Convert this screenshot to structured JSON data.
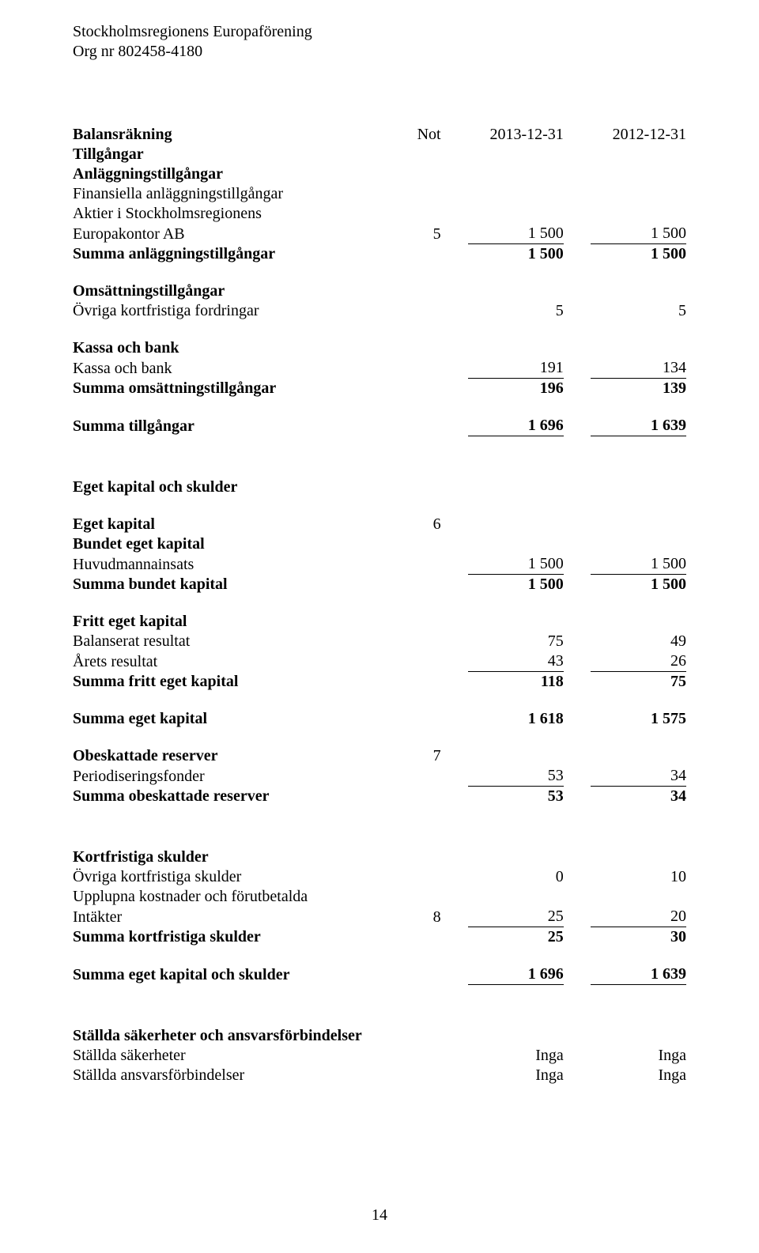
{
  "header": {
    "org_name": "Stockholmsregionens Europaförening",
    "org_nr_label": "Org nr 802458-4180"
  },
  "title": "Balansräkning",
  "col_headers": {
    "not": "Not",
    "y1": "2013-12-31",
    "y2": "2012-12-31"
  },
  "rows": [
    {
      "label": "Tillgångar",
      "style": "b"
    },
    {
      "label": "Anläggningstillgångar",
      "style": "b"
    },
    {
      "label": "Finansiella anläggningstillgångar"
    },
    {
      "label": "Aktier i Stockholmsregionens"
    },
    {
      "label": "Europakontor AB",
      "not": "5",
      "y1": "1 500",
      "y2": "1 500",
      "underline": true
    },
    {
      "label": "Summa anläggningstillgångar",
      "style": "b",
      "y1": "1 500",
      "y2": "1 500",
      "styleVals": "b"
    },
    {
      "spacer": 22
    },
    {
      "label": "Omsättningstillgångar",
      "style": "b"
    },
    {
      "label": "Övriga kortfristiga fordringar",
      "y1": "5",
      "y2": "5"
    },
    {
      "spacer": 22
    },
    {
      "label": "Kassa och bank",
      "style": "b"
    },
    {
      "label": "Kassa och bank",
      "y1": "191",
      "y2": "134",
      "underline": true
    },
    {
      "label": "Summa omsättningstillgångar",
      "style": "b",
      "y1": "196",
      "y2": "139",
      "styleVals": "b"
    },
    {
      "spacer": 22
    },
    {
      "label": "Summa tillgångar",
      "style": "b",
      "y1": "1 696",
      "y2": "1 639",
      "underline": true,
      "styleVals": "b"
    },
    {
      "spacer": 52
    },
    {
      "label": "Eget kapital och skulder",
      "style": "b"
    },
    {
      "spacer": 22
    },
    {
      "label": "Eget kapital",
      "style": "b",
      "not": "6"
    },
    {
      "label": "Bundet eget kapital",
      "style": "b"
    },
    {
      "label": "Huvudmannainsats",
      "y1": "1 500",
      "y2": "1 500",
      "underline": true
    },
    {
      "label": "Summa bundet kapital",
      "style": "b",
      "y1": "1 500",
      "y2": "1 500",
      "styleVals": "b"
    },
    {
      "spacer": 22
    },
    {
      "label": "Fritt eget kapital",
      "style": "b"
    },
    {
      "label": "Balanserat resultat",
      "y1": "75",
      "y2": "49"
    },
    {
      "label": "Årets resultat",
      "y1": "43",
      "y2": "26",
      "underline": true
    },
    {
      "label": "Summa fritt eget kapital",
      "style": "b",
      "y1": "118",
      "y2": "75",
      "styleVals": "b"
    },
    {
      "spacer": 22
    },
    {
      "label": "Summa eget kapital",
      "style": "b",
      "y1": "1 618",
      "y2": "1 575",
      "styleVals": "b"
    },
    {
      "spacer": 22
    },
    {
      "label": "Obeskattade reserver",
      "style": "b",
      "not": "7"
    },
    {
      "label": "Periodiseringsfonder",
      "y1": "53",
      "y2": "34",
      "underline": true
    },
    {
      "label": "Summa obeskattade reserver",
      "style": "b",
      "y1": "53",
      "y2": "34",
      "styleVals": "b"
    },
    {
      "spacer": 52
    },
    {
      "label": "Kortfristiga skulder",
      "style": "b"
    },
    {
      "label": "Övriga kortfristiga skulder",
      "y1": "0",
      "y2": "10"
    },
    {
      "label": "Upplupna kostnader och förutbetalda"
    },
    {
      "label": "Intäkter",
      "not": "8",
      "y1": "25",
      "y2": "20",
      "underline": true
    },
    {
      "label": "Summa kortfristiga skulder",
      "style": "b",
      "y1": "25",
      "y2": "30",
      "styleVals": "b"
    },
    {
      "spacer": 22
    },
    {
      "label": "Summa eget kapital och skulder",
      "style": "b",
      "y1": "1 696",
      "y2": "1 639",
      "underline": true,
      "styleVals": "b"
    },
    {
      "spacer": 52
    },
    {
      "label": "Ställda säkerheter och ansvarsförbindelser",
      "style": "b"
    },
    {
      "label": "Ställda säkerheter",
      "y1": "Inga",
      "y2": "Inga"
    },
    {
      "label": "Ställda ansvarsförbindelser",
      "y1": "Inga",
      "y2": "Inga"
    }
  ],
  "page_number": "14"
}
